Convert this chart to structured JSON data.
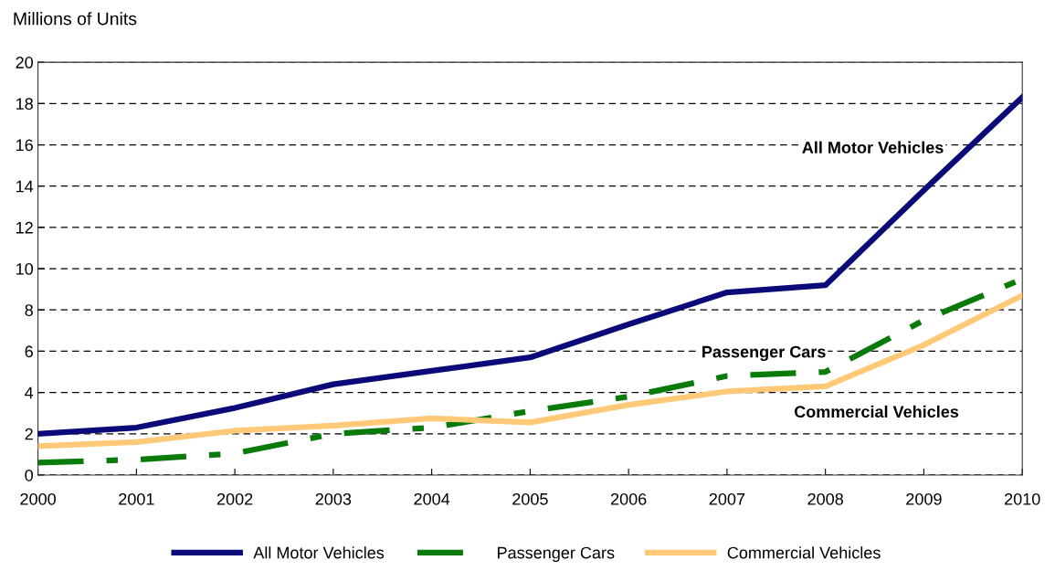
{
  "chart_data": {
    "type": "line",
    "ylabel": "Millions of Units",
    "x": [
      2000,
      2001,
      2002,
      2003,
      2004,
      2005,
      2006,
      2007,
      2008,
      2009,
      2010
    ],
    "xlim": [
      2000,
      2010
    ],
    "xticks": [
      2000,
      2001,
      2002,
      2003,
      2004,
      2005,
      2006,
      2007,
      2008,
      2009,
      2010
    ],
    "ylim": [
      0,
      20
    ],
    "yticks": [
      0,
      2,
      4,
      6,
      8,
      10,
      12,
      14,
      16,
      18,
      20
    ],
    "grid": "y",
    "legend": "bottom",
    "marker": "none",
    "series": [
      {
        "name": "All Motor Vehicles",
        "color": "#0a0a78",
        "line_style": "solid",
        "values": [
          2.0,
          2.3,
          3.25,
          4.4,
          5.05,
          5.7,
          7.3,
          8.85,
          9.2,
          13.8,
          18.3
        ]
      },
      {
        "name": "Passenger Cars",
        "color": "#0a7a0a",
        "line_style": "dashed",
        "values": [
          0.6,
          0.75,
          1.05,
          2.0,
          2.3,
          3.1,
          3.8,
          4.8,
          5.0,
          7.5,
          9.5
        ]
      },
      {
        "name": "Commercial Vehicles",
        "color": "#ffc978",
        "line_style": "solid",
        "values": [
          1.4,
          1.6,
          2.15,
          2.4,
          2.75,
          2.55,
          3.4,
          4.05,
          4.3,
          6.3,
          8.7
        ]
      }
    ],
    "annotations": [
      "All Motor Vehicles",
      "Passenger Cars",
      "Commercial Vehicles"
    ]
  }
}
